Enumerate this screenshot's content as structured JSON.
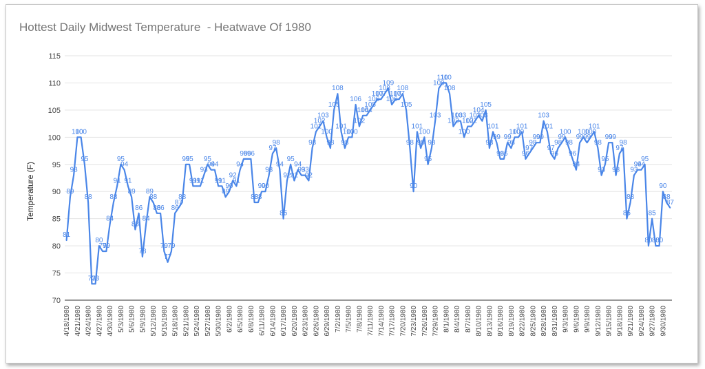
{
  "chart_data": {
    "type": "line",
    "title": "Hottest Daily Midwest Temperature  - Heatwave Of 1980",
    "xlabel": "",
    "ylabel": "Temperature (F)",
    "ylim": [
      70,
      115
    ],
    "yticks": [
      70,
      75,
      80,
      85,
      90,
      95,
      100,
      105,
      110,
      115
    ],
    "grid": "horizontal",
    "legend": "none",
    "x_tick_labels": [
      "4/18/1980",
      "4/21/1980",
      "4/24/1980",
      "4/27/1980",
      "4/30/1980",
      "5/3/1980",
      "5/6/1980",
      "5/9/1980",
      "5/12/1980",
      "5/15/1980",
      "5/18/1980",
      "5/21/1980",
      "5/24/1980",
      "5/27/1980",
      "5/30/1980",
      "6/2/1980",
      "6/5/1980",
      "6/8/1980",
      "6/11/1980",
      "6/14/1980",
      "6/17/1980",
      "6/20/1980",
      "6/23/1980",
      "6/26/1980",
      "6/29/1980",
      "7/2/1980",
      "7/5/1980",
      "7/8/1980",
      "7/11/1980",
      "7/14/1980",
      "7/17/1980",
      "7/20/1980",
      "7/23/1980",
      "7/26/1980",
      "7/29/1980",
      "8/1/1980",
      "8/4/1980",
      "8/7/1980",
      "8/10/1980",
      "8/13/1980",
      "8/16/1980",
      "8/19/1980",
      "8/22/1980",
      "8/25/1980",
      "8/28/1980",
      "8/31/1980",
      "9/3/1980",
      "9/6/1980",
      "9/9/1980",
      "9/12/1980",
      "9/15/1980",
      "9/18/1980",
      "9/21/1980",
      "9/24/1980",
      "9/27/1980",
      "9/30/1980"
    ],
    "x_start": "4/18/1980",
    "x_end": "10/1/1980",
    "series": [
      {
        "color": "#4a86e8",
        "values": [
          81,
          89,
          93,
          100,
          100,
          95,
          88,
          73,
          73,
          80,
          79,
          79,
          84,
          88,
          91,
          95,
          94,
          91,
          89,
          83,
          86,
          78,
          84,
          89,
          88,
          86,
          86,
          79,
          77,
          79,
          86,
          87,
          88,
          95,
          95,
          91,
          91,
          91,
          93,
          95,
          94,
          94,
          91,
          91,
          89,
          90,
          92,
          91,
          94,
          96,
          96,
          96,
          88,
          88,
          90,
          90,
          93,
          97,
          98,
          94,
          85,
          92,
          95,
          92,
          94,
          93,
          93,
          92,
          98,
          101,
          102,
          103,
          100,
          98,
          105,
          108,
          101,
          98,
          100,
          100,
          106,
          102,
          104,
          104,
          105,
          106,
          107,
          107,
          108,
          109,
          106,
          107,
          107,
          108,
          105,
          98,
          90,
          101,
          98,
          100,
          95,
          98,
          103,
          109,
          110,
          110,
          108,
          102,
          103,
          103,
          100,
          102,
          102,
          103,
          104,
          103,
          105,
          98,
          101,
          99,
          96,
          96,
          99,
          98,
          100,
          100,
          101,
          96,
          97,
          98,
          99,
          99,
          103,
          101,
          97,
          96,
          98,
          99,
          100,
          98,
          96,
          94,
          99,
          100,
          99,
          100,
          101,
          98,
          93,
          95,
          99,
          99,
          93,
          97,
          98,
          85,
          88,
          93,
          94,
          94,
          95,
          80,
          85,
          80,
          80,
          90,
          88,
          87
        ]
      }
    ]
  }
}
